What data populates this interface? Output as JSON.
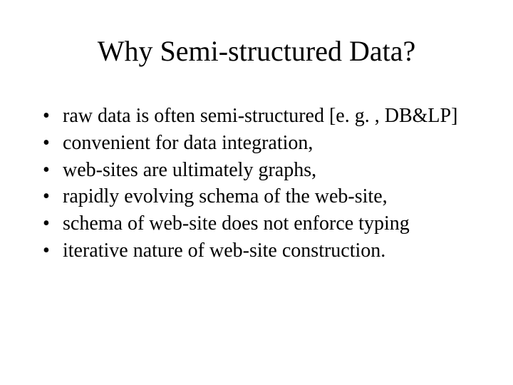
{
  "slide": {
    "background_color": "#ffffff",
    "text_color": "#000000",
    "font_family": "Times New Roman",
    "title": {
      "text": "Why Semi-structured Data?",
      "fontsize": 40,
      "align": "center"
    },
    "bullets": {
      "fontsize": 28,
      "marker": "•",
      "items": [
        "raw data is often semi-structured [e. g. , DB&LP]",
        " convenient for data integration,",
        " web-sites are ultimately graphs,",
        " rapidly evolving schema of the web-site,",
        " schema of web-site does not enforce typing",
        " iterative nature of web-site construction."
      ]
    }
  }
}
